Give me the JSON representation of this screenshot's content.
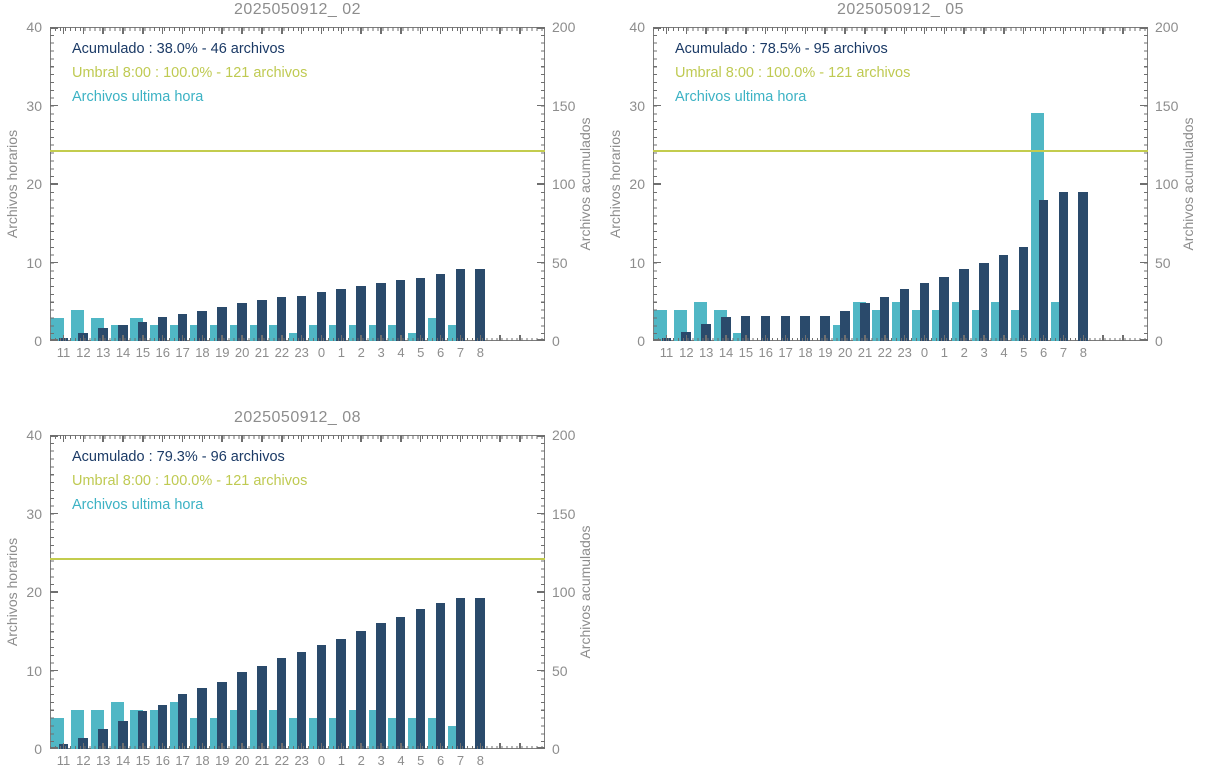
{
  "page": {
    "background": "#ffffff"
  },
  "colors": {
    "hourly_bar": "#50b7c5",
    "accumulated_bar": "#2a4a6b",
    "umbral_line": "#c3cc4e",
    "legend_acumulado_text": "#1b3a66",
    "legend_umbral_text": "#bfca52",
    "legend_hourly_text": "#3cb2c4",
    "axis_text": "#8d8d8d",
    "frame": "#7d7d7d",
    "tick": "#6f6f6f"
  },
  "chart_data": [
    {
      "type": "bar",
      "title": "2025050912_ 02",
      "x_categories": [
        "11",
        "12",
        "13",
        "14",
        "15",
        "16",
        "17",
        "18",
        "19",
        "20",
        "21",
        "22",
        "23",
        "0",
        "1",
        "2",
        "3",
        "4",
        "5",
        "6",
        "7",
        "8"
      ],
      "series": [
        {
          "name": "Archivos ultima hora",
          "axis": "left",
          "color_key": "hourly_bar",
          "values": [
            3,
            4,
            3,
            2,
            3,
            2,
            2,
            2,
            2,
            2,
            2,
            2,
            1,
            2,
            2,
            2,
            2,
            2,
            1,
            3,
            2,
            0
          ]
        },
        {
          "name": "Acumulado",
          "axis": "right",
          "color_key": "accumulated_bar",
          "values": [
            2,
            5,
            8,
            10,
            12,
            15,
            17,
            19,
            22,
            24,
            26,
            28,
            29,
            31,
            33,
            35,
            37,
            39,
            40,
            43,
            46,
            46
          ]
        }
      ],
      "threshold": {
        "name": "Umbral 8:00",
        "axis": "right",
        "value": 121
      },
      "legend": {
        "acumulado": "Acumulado : 38.0% - 46 archivos",
        "umbral": "Umbral 8:00 : 100.0% - 121 archivos",
        "ultima_hora": "Archivos ultima hora"
      },
      "ylabel_left": "Archivos horarios",
      "ylabel_right": "Archivos acumulados",
      "ylim_left": [
        0,
        40
      ],
      "ylim_right": [
        0,
        200
      ],
      "yticks_left": [
        "0",
        "10",
        "20",
        "30",
        "40"
      ],
      "yticks_right": [
        "0",
        "50",
        "100",
        "150",
        "200"
      ],
      "legend_position": "top-left-inside",
      "grid": false
    },
    {
      "type": "bar",
      "title": "2025050912_ 05",
      "x_categories": [
        "11",
        "12",
        "13",
        "14",
        "15",
        "16",
        "17",
        "18",
        "19",
        "20",
        "21",
        "22",
        "23",
        "0",
        "1",
        "2",
        "3",
        "4",
        "5",
        "6",
        "7",
        "8"
      ],
      "series": [
        {
          "name": "Archivos ultima hora",
          "axis": "left",
          "color_key": "hourly_bar",
          "values": [
            4,
            4,
            5,
            4,
            1,
            0,
            0,
            0,
            0,
            2,
            5,
            4,
            5,
            4,
            4,
            5,
            4,
            5,
            4,
            29,
            5,
            0
          ]
        },
        {
          "name": "Acumulado",
          "axis": "right",
          "color_key": "accumulated_bar",
          "values": [
            2,
            6,
            11,
            15,
            16,
            16,
            16,
            16,
            16,
            19,
            24,
            28,
            33,
            37,
            41,
            46,
            50,
            55,
            60,
            90,
            95,
            95
          ]
        }
      ],
      "threshold": {
        "name": "Umbral 8:00",
        "axis": "right",
        "value": 121
      },
      "legend": {
        "acumulado": "Acumulado : 78.5% - 95 archivos",
        "umbral": "Umbral 8:00 : 100.0% - 121 archivos",
        "ultima_hora": "Archivos ultima hora"
      },
      "ylabel_left": "Archivos horarios",
      "ylabel_right": "Archivos acumulados",
      "ylim_left": [
        0,
        40
      ],
      "ylim_right": [
        0,
        200
      ],
      "yticks_left": [
        "0",
        "10",
        "20",
        "30",
        "40"
      ],
      "yticks_right": [
        "0",
        "50",
        "100",
        "150",
        "200"
      ],
      "legend_position": "top-left-inside",
      "grid": false
    },
    {
      "type": "bar",
      "title": "2025050912_ 08",
      "x_categories": [
        "11",
        "12",
        "13",
        "14",
        "15",
        "16",
        "17",
        "18",
        "19",
        "20",
        "21",
        "22",
        "23",
        "0",
        "1",
        "2",
        "3",
        "4",
        "5",
        "6",
        "7",
        "8"
      ],
      "series": [
        {
          "name": "Archivos ultima hora",
          "axis": "left",
          "color_key": "hourly_bar",
          "values": [
            4,
            5,
            5,
            6,
            5,
            5,
            6,
            4,
            4,
            5,
            5,
            5,
            4,
            4,
            4,
            5,
            5,
            4,
            4,
            4,
            3,
            0
          ]
        },
        {
          "name": "Acumulado",
          "axis": "right",
          "color_key": "accumulated_bar",
          "values": [
            3,
            7,
            13,
            18,
            24,
            28,
            35,
            39,
            43,
            49,
            53,
            58,
            62,
            66,
            70,
            75,
            80,
            84,
            89,
            93,
            96,
            96
          ]
        }
      ],
      "threshold": {
        "name": "Umbral 8:00",
        "axis": "right",
        "value": 121
      },
      "legend": {
        "acumulado": "Acumulado : 79.3% - 96 archivos",
        "umbral": "Umbral 8:00 : 100.0% - 121 archivos",
        "ultima_hora": "Archivos ultima hora"
      },
      "ylabel_left": "Archivos horarios",
      "ylabel_right": "Archivos acumulados",
      "ylim_left": [
        0,
        40
      ],
      "ylim_right": [
        0,
        200
      ],
      "yticks_left": [
        "0",
        "10",
        "20",
        "30",
        "40"
      ],
      "yticks_right": [
        "0",
        "50",
        "100",
        "150",
        "200"
      ],
      "legend_position": "top-left-inside",
      "grid": false
    }
  ]
}
